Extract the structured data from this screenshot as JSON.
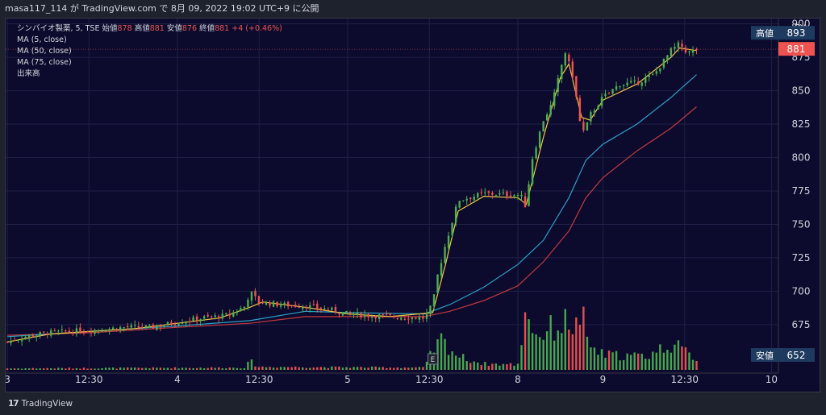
{
  "header": {
    "text": "masa117_114 が TradingView.com で 8月 09, 2022 19:02 UTC+9 に公開"
  },
  "legend": {
    "symbol": "シンバイオ製薬, 5, TSE",
    "ohlc_labels": [
      "始値",
      "高値",
      "安値",
      "終値"
    ],
    "ohlc_values": [
      "878",
      "881",
      "876",
      "881"
    ],
    "change": "+4 (+0.46%)",
    "studies": [
      "MA (5, close)",
      "MA (50, close)",
      "MA (75, close)",
      "出来高"
    ]
  },
  "footer": {
    "logo_mark": "17",
    "brand": "TradingView"
  },
  "chart_data": {
    "type": "candlestick",
    "currency": "JPY",
    "ylim": [
      652,
      904
    ],
    "y_ticks": [
      675,
      700,
      725,
      750,
      775,
      800,
      825,
      850,
      875,
      900
    ],
    "x_tick_labels": [
      "3",
      "12:30",
      "4",
      "12:30",
      "5",
      "12:30",
      "8",
      "9",
      "12:30",
      "10"
    ],
    "price_markers": [
      {
        "label": "高値",
        "value": 893
      },
      {
        "label": "",
        "value": 881
      },
      {
        "label": "安値",
        "value": 652
      }
    ],
    "event_marker": "E",
    "series": [
      {
        "name": "MA (5, close)",
        "color": "#f5c542"
      },
      {
        "name": "MA (50, close)",
        "color": "#2aa1c8"
      },
      {
        "name": "MA (75, close)",
        "color": "#c6383f"
      },
      {
        "name": "出来高",
        "colors": {
          "up": "#4caf50",
          "down": "#ef5350"
        }
      }
    ],
    "price_path": [
      [
        0,
        662
      ],
      [
        0.2,
        666
      ],
      [
        0.5,
        669
      ],
      [
        1.0,
        671
      ],
      [
        1.4,
        673
      ],
      [
        1.7,
        673
      ],
      [
        2.0,
        677
      ],
      [
        2.3,
        680
      ],
      [
        2.6,
        682
      ],
      [
        2.8,
        689
      ],
      [
        2.85,
        700
      ],
      [
        2.95,
        692
      ],
      [
        3.2,
        690
      ],
      [
        3.5,
        689
      ],
      [
        3.8,
        686
      ],
      [
        4.0,
        683
      ],
      [
        4.5,
        681
      ],
      [
        4.9,
        680
      ],
      [
        5.0,
        690
      ],
      [
        5.05,
        710
      ],
      [
        5.15,
        735
      ],
      [
        5.3,
        768
      ],
      [
        5.6,
        773
      ],
      [
        6.0,
        772
      ],
      [
        6.05,
        770
      ],
      [
        6.1,
        762
      ],
      [
        6.15,
        795
      ],
      [
        6.3,
        828
      ],
      [
        6.4,
        840
      ],
      [
        6.5,
        865
      ],
      [
        6.55,
        880
      ],
      [
        6.65,
        860
      ],
      [
        6.75,
        818
      ],
      [
        6.8,
        822
      ],
      [
        6.85,
        832
      ],
      [
        7.0,
        845
      ],
      [
        7.2,
        855
      ],
      [
        7.4,
        856
      ],
      [
        7.6,
        862
      ],
      [
        7.8,
        880
      ],
      [
        7.9,
        885
      ],
      [
        8.0,
        878
      ],
      [
        8.1,
        881
      ]
    ],
    "ma5": [
      [
        0,
        662
      ],
      [
        0.5,
        668
      ],
      [
        1.0,
        670
      ],
      [
        1.5,
        672
      ],
      [
        2.0,
        676
      ],
      [
        2.5,
        680
      ],
      [
        2.85,
        688
      ],
      [
        3.0,
        692
      ],
      [
        3.5,
        688
      ],
      [
        4.0,
        683
      ],
      [
        4.5,
        681
      ],
      [
        5.0,
        684
      ],
      [
        5.15,
        720
      ],
      [
        5.3,
        760
      ],
      [
        5.6,
        771
      ],
      [
        6.0,
        770
      ],
      [
        6.1,
        765
      ],
      [
        6.3,
        815
      ],
      [
        6.5,
        860
      ],
      [
        6.6,
        870
      ],
      [
        6.75,
        830
      ],
      [
        6.85,
        828
      ],
      [
        7.0,
        843
      ],
      [
        7.4,
        855
      ],
      [
        7.8,
        875
      ],
      [
        7.9,
        882
      ],
      [
        8.1,
        880
      ]
    ],
    "ma50": [
      [
        0,
        666
      ],
      [
        1.0,
        670
      ],
      [
        2.0,
        674
      ],
      [
        2.85,
        678
      ],
      [
        3.5,
        685
      ],
      [
        4.0,
        684
      ],
      [
        4.9,
        683
      ],
      [
        5.2,
        690
      ],
      [
        5.6,
        703
      ],
      [
        6.0,
        720
      ],
      [
        6.3,
        738
      ],
      [
        6.6,
        770
      ],
      [
        6.8,
        798
      ],
      [
        7.0,
        810
      ],
      [
        7.4,
        825
      ],
      [
        7.8,
        845
      ],
      [
        8.1,
        862
      ]
    ],
    "ma75": [
      [
        0,
        667
      ],
      [
        1.0,
        669
      ],
      [
        2.0,
        673
      ],
      [
        2.85,
        676
      ],
      [
        3.5,
        681
      ],
      [
        4.0,
        681
      ],
      [
        4.9,
        681
      ],
      [
        5.2,
        685
      ],
      [
        5.6,
        693
      ],
      [
        6.0,
        704
      ],
      [
        6.3,
        722
      ],
      [
        6.6,
        745
      ],
      [
        6.8,
        770
      ],
      [
        7.0,
        785
      ],
      [
        7.4,
        805
      ],
      [
        7.8,
        822
      ],
      [
        8.1,
        838
      ]
    ],
    "volume_profile": [
      [
        0,
        0.02
      ],
      [
        2.8,
        0.03
      ],
      [
        2.85,
        0.12
      ],
      [
        2.95,
        0.04
      ],
      [
        4.9,
        0.03
      ],
      [
        5.0,
        0.25
      ],
      [
        5.1,
        0.4
      ],
      [
        5.3,
        0.18
      ],
      [
        5.6,
        0.08
      ],
      [
        6.0,
        0.07
      ],
      [
        6.1,
        0.9
      ],
      [
        6.2,
        0.45
      ],
      [
        6.4,
        0.55
      ],
      [
        6.6,
        0.65
      ],
      [
        6.7,
        0.55
      ],
      [
        6.75,
        0.85
      ],
      [
        6.8,
        0.35
      ],
      [
        7.0,
        0.2
      ],
      [
        7.5,
        0.18
      ],
      [
        7.8,
        0.35
      ],
      [
        8.1,
        0.15
      ]
    ]
  }
}
